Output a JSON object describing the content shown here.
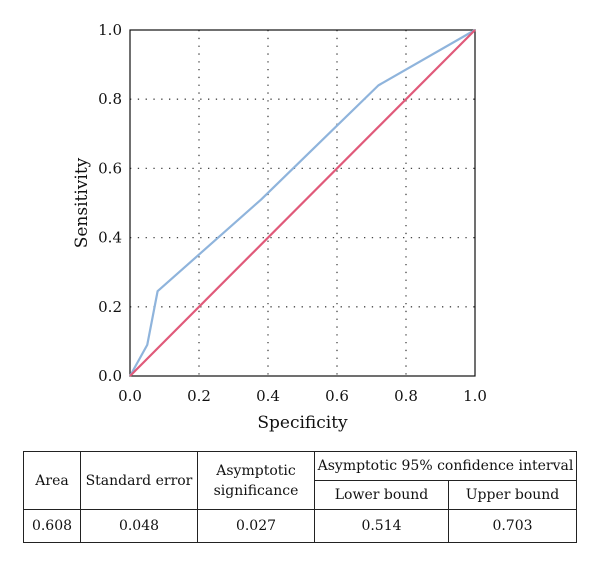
{
  "chart_data": {
    "type": "line",
    "xlabel": "Specificity",
    "ylabel": "Sensitivity",
    "xlim": [
      0.0,
      1.0
    ],
    "ylim": [
      0.0,
      1.0
    ],
    "x_ticks": [
      "0.0",
      "0.2",
      "0.4",
      "0.6",
      "0.8",
      "1.0"
    ],
    "y_ticks": [
      "0.0",
      "0.2",
      "0.4",
      "0.6",
      "0.8",
      "1.0"
    ],
    "grid": true,
    "series": [
      {
        "color": "#8fb4dc",
        "x": [
          0.0,
          0.05,
          0.08,
          0.38,
          0.72,
          1.0
        ],
        "y": [
          0.0,
          0.09,
          0.245,
          0.51,
          0.84,
          1.0
        ]
      },
      {
        "color": "#e05a7a",
        "x": [
          0.0,
          1.0
        ],
        "y": [
          0.0,
          1.0
        ]
      }
    ]
  },
  "table": {
    "headers": {
      "area": "Area",
      "standard_error": "Standard error",
      "asymptotic_significance": "Asymptotic significance",
      "confidence_interval": "Asymptotic 95% confidence interval",
      "lower_bound": "Lower bound",
      "upper_bound": "Upper bound"
    },
    "row": {
      "area": "0.608",
      "standard_error": "0.048",
      "asymptotic_significance": "0.027",
      "lower_bound": "0.514",
      "upper_bound": "0.703"
    }
  }
}
